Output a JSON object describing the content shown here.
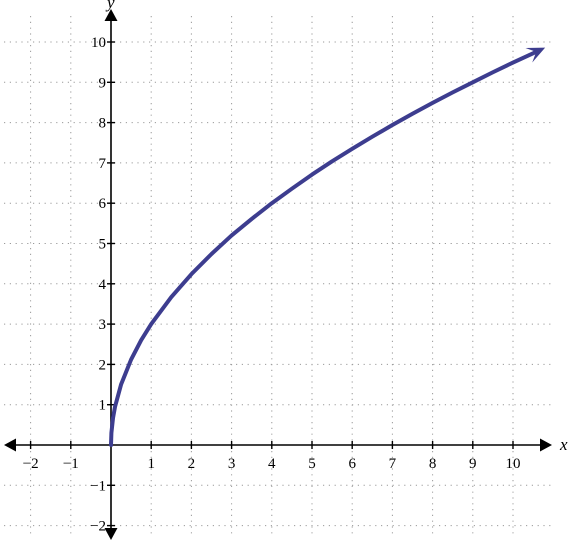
{
  "chart_data": {
    "type": "line",
    "title": "",
    "xlabel": "x",
    "ylabel": "y",
    "xlim": [
      -2,
      10.8
    ],
    "ylim": [
      -2.4,
      10.8
    ],
    "x_ticks": [
      -2,
      -1,
      1,
      2,
      3,
      4,
      5,
      6,
      7,
      8,
      9,
      10
    ],
    "y_ticks": [
      -2,
      -1,
      1,
      2,
      3,
      4,
      5,
      6,
      7,
      8,
      9,
      10
    ],
    "x_tick_labels": [
      "−2",
      "−1",
      "1",
      "2",
      "3",
      "4",
      "5",
      "6",
      "7",
      "8",
      "9",
      "10"
    ],
    "y_tick_labels": [
      "−2",
      "−1",
      "1",
      "2",
      "3",
      "4",
      "5",
      "6",
      "7",
      "8",
      "9",
      "10"
    ],
    "grid": true,
    "series": [
      {
        "color": "#3d3d8f",
        "x": [
          0,
          0.01,
          0.05,
          0.1,
          0.25,
          0.5,
          0.75,
          1,
          1.5,
          2,
          2.5,
          3,
          3.5,
          4,
          4.5,
          5,
          5.5,
          6,
          6.5,
          7,
          7.5,
          8,
          8.5,
          9,
          9.5,
          10,
          10.5,
          10.8
        ],
        "y": [
          0,
          0.3,
          0.67,
          0.95,
          1.5,
          2.12,
          2.6,
          3,
          3.67,
          4.24,
          4.74,
          5.2,
          5.61,
          6,
          6.36,
          6.71,
          7.04,
          7.35,
          7.65,
          7.94,
          8.22,
          8.49,
          8.75,
          9,
          9.25,
          9.49,
          9.72,
          9.86
        ],
        "end_arrow": true
      }
    ]
  }
}
